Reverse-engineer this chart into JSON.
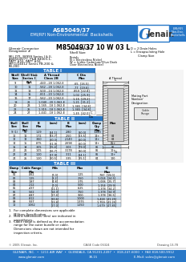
{
  "title_box_color": "#2878c8",
  "page_bg": "#ffffff",
  "footer_bg": "#2878c8"
}
